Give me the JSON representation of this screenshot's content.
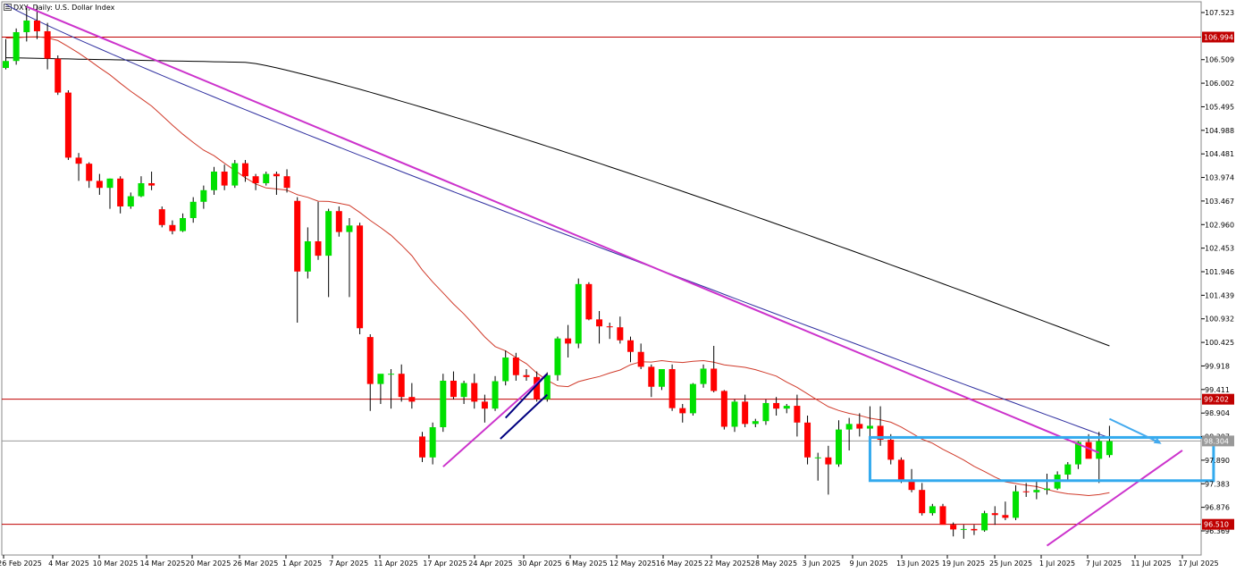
{
  "window": {
    "title": "DXY, Daily:  U.S. Dollar Index",
    "icon": "chart-window-icon"
  },
  "colors": {
    "background": "#ffffff",
    "bull_candle": "#00e000",
    "bear_candle": "#ff0000",
    "candle_wick": "#000000",
    "trendline": "#cc33cc",
    "channel_line": "#000080",
    "ma_fast": "#d03a2a",
    "ma_mid": "#3030a0",
    "ma_slow": "#000000",
    "horizontal_level": "#c00000",
    "current_price_line": "#999999",
    "consolidation_box": "#33aaee",
    "arrow": "#44aaee"
  },
  "chart_data": {
    "type": "candlestick",
    "symbol": "DXY",
    "timeframe": "Daily",
    "x_tick_labels": [
      "26 Feb 2025",
      "4 Mar 2025",
      "10 Mar 2025",
      "14 Mar 2025",
      "20 Mar 2025",
      "26 Mar 2025",
      "1 Apr 2025",
      "7 Apr 2025",
      "11 Apr 2025",
      "17 Apr 2025",
      "24 Apr 2025",
      "30 Apr 2025",
      "6 May 2025",
      "12 May 2025",
      "16 May 2025",
      "22 May 2025",
      "28 May 2025",
      "3 Jun 2025",
      "9 Jun 2025",
      "13 Jun 2025",
      "19 Jun 2025",
      "25 Jun 2025",
      "1 Jul 2025",
      "7 Jul 2025",
      "11 Jul 2025",
      "17 Jul 2025"
    ],
    "y_tick_labels": [
      "107.523",
      "106.509",
      "106.002",
      "105.495",
      "104.988",
      "104.481",
      "103.974",
      "103.467",
      "102.960",
      "102.453",
      "101.946",
      "101.439",
      "100.932",
      "100.425",
      "99.918",
      "99.411",
      "98.904",
      "98.397",
      "97.890",
      "97.383",
      "96.876",
      "96.369"
    ],
    "ylim": [
      96.1,
      107.75
    ],
    "horizontal_levels": [
      106.994,
      99.202,
      96.51
    ],
    "current_price": 98.304,
    "candles": [
      [
        106.33,
        106.95,
        106.3,
        106.48
      ],
      [
        106.48,
        107.18,
        106.4,
        107.1
      ],
      [
        107.1,
        107.62,
        106.9,
        107.35
      ],
      [
        107.35,
        107.68,
        106.95,
        107.12
      ],
      [
        107.12,
        107.3,
        106.3,
        106.53
      ],
      [
        106.53,
        106.6,
        105.75,
        105.8
      ],
      [
        105.8,
        105.85,
        104.35,
        104.4
      ],
      [
        104.4,
        104.5,
        103.9,
        104.27
      ],
      [
        104.27,
        104.3,
        103.75,
        103.9
      ],
      [
        103.9,
        104.05,
        103.6,
        103.75
      ],
      [
        103.75,
        103.95,
        103.3,
        103.95
      ],
      [
        103.95,
        104.0,
        103.2,
        103.35
      ],
      [
        103.35,
        103.65,
        103.3,
        103.57
      ],
      [
        103.57,
        104.0,
        103.55,
        103.85
      ],
      [
        103.85,
        104.1,
        103.7,
        103.8
      ],
      [
        103.29,
        103.35,
        102.9,
        102.95
      ],
      [
        102.95,
        103.05,
        102.75,
        102.82
      ],
      [
        102.82,
        103.2,
        102.8,
        103.1
      ],
      [
        103.1,
        103.55,
        103.0,
        103.45
      ],
      [
        103.45,
        103.8,
        103.3,
        103.7
      ],
      [
        103.7,
        104.2,
        103.6,
        104.1
      ],
      [
        104.1,
        104.25,
        103.7,
        103.8
      ],
      [
        103.8,
        104.35,
        103.75,
        104.28
      ],
      [
        104.28,
        104.35,
        103.88,
        104.0
      ],
      [
        104.0,
        104.05,
        103.7,
        103.85
      ],
      [
        103.85,
        104.1,
        103.8,
        104.05
      ],
      [
        104.05,
        104.1,
        103.6,
        104.0
      ],
      [
        104.0,
        104.15,
        103.65,
        103.75
      ],
      [
        103.47,
        103.55,
        100.85,
        101.95
      ],
      [
        101.95,
        102.9,
        101.8,
        102.6
      ],
      [
        102.6,
        103.45,
        102.2,
        102.29
      ],
      [
        102.29,
        103.3,
        101.4,
        103.25
      ],
      [
        103.25,
        103.35,
        102.7,
        102.8
      ],
      [
        102.8,
        103.1,
        101.4,
        102.94
      ],
      [
        102.94,
        103.0,
        100.6,
        100.73
      ],
      [
        100.54,
        100.6,
        98.95,
        99.53
      ],
      [
        99.53,
        99.65,
        99.1,
        99.75
      ],
      [
        99.75,
        99.85,
        99.0,
        99.75
      ],
      [
        99.75,
        99.95,
        99.15,
        99.25
      ],
      [
        99.25,
        99.55,
        99.0,
        99.15
      ],
      [
        98.4,
        98.5,
        97.85,
        97.95
      ],
      [
        97.95,
        98.7,
        97.8,
        98.6
      ],
      [
        98.6,
        99.75,
        98.5,
        99.6
      ],
      [
        99.6,
        99.8,
        99.2,
        99.25
      ],
      [
        99.25,
        99.6,
        99.1,
        99.55
      ],
      [
        99.55,
        99.75,
        99.0,
        99.15
      ],
      [
        99.15,
        99.3,
        98.7,
        99.0
      ],
      [
        99.0,
        99.7,
        98.95,
        99.59
      ],
      [
        99.59,
        100.25,
        99.5,
        100.1
      ],
      [
        100.1,
        100.2,
        99.6,
        99.72
      ],
      [
        99.72,
        99.85,
        99.6,
        99.68
      ],
      [
        99.68,
        99.8,
        99.15,
        99.2
      ],
      [
        99.2,
        99.78,
        99.15,
        99.72
      ],
      [
        99.72,
        100.55,
        99.6,
        100.51
      ],
      [
        100.51,
        100.8,
        100.1,
        100.4
      ],
      [
        100.4,
        101.8,
        100.3,
        101.68
      ],
      [
        101.68,
        101.72,
        100.9,
        100.92
      ],
      [
        100.92,
        101.1,
        100.4,
        100.77
      ],
      [
        100.77,
        100.85,
        100.5,
        100.75
      ],
      [
        100.75,
        100.98,
        100.4,
        100.47
      ],
      [
        100.47,
        100.55,
        100.0,
        100.22
      ],
      [
        100.22,
        100.4,
        99.85,
        99.9
      ],
      [
        99.9,
        99.95,
        99.25,
        99.47
      ],
      [
        99.47,
        99.85,
        99.4,
        99.85
      ],
      [
        99.85,
        99.95,
        98.95,
        99.01
      ],
      [
        99.01,
        99.1,
        98.7,
        98.9
      ],
      [
        98.9,
        99.55,
        98.85,
        99.53
      ],
      [
        99.53,
        99.95,
        99.45,
        99.86
      ],
      [
        99.86,
        100.35,
        99.35,
        99.38
      ],
      [
        99.38,
        99.4,
        98.55,
        98.61
      ],
      [
        98.61,
        99.2,
        98.5,
        99.15
      ],
      [
        99.15,
        99.3,
        98.6,
        98.67
      ],
      [
        98.67,
        98.78,
        98.6,
        98.73
      ],
      [
        98.73,
        99.2,
        98.65,
        99.12
      ],
      [
        99.12,
        99.25,
        98.85,
        99.0
      ],
      [
        99.0,
        99.1,
        98.9,
        99.06
      ],
      [
        99.06,
        99.3,
        98.4,
        98.7
      ],
      [
        98.7,
        98.85,
        97.8,
        97.95
      ],
      [
        97.95,
        98.05,
        97.45,
        97.95
      ],
      [
        97.95,
        98.2,
        97.15,
        97.8
      ],
      [
        97.8,
        98.75,
        97.75,
        98.55
      ],
      [
        98.55,
        98.8,
        98.1,
        98.67
      ],
      [
        98.67,
        98.9,
        98.4,
        98.57
      ],
      [
        98.57,
        99.05,
        98.3,
        98.63
      ],
      [
        98.63,
        99.05,
        98.2,
        98.33
      ],
      [
        98.33,
        98.45,
        97.8,
        97.9
      ],
      [
        97.9,
        97.95,
        97.4,
        97.45
      ],
      [
        97.45,
        97.7,
        97.2,
        97.25
      ],
      [
        97.25,
        97.4,
        96.7,
        96.75
      ],
      [
        96.75,
        96.95,
        96.7,
        96.9
      ],
      [
        96.9,
        96.95,
        96.6,
        96.5
      ],
      [
        96.5,
        96.55,
        96.25,
        96.4
      ],
      [
        96.4,
        96.5,
        96.2,
        96.41
      ],
      [
        96.41,
        96.5,
        96.28,
        96.38
      ],
      [
        96.38,
        96.8,
        96.35,
        96.75
      ],
      [
        96.75,
        96.9,
        96.5,
        96.71
      ],
      [
        96.71,
        97.0,
        96.6,
        96.65
      ],
      [
        96.65,
        97.35,
        96.6,
        97.22
      ],
      [
        97.22,
        97.4,
        97.1,
        97.2
      ],
      [
        97.2,
        97.45,
        97.05,
        97.25
      ],
      [
        97.25,
        97.6,
        97.15,
        97.28
      ],
      [
        97.28,
        97.65,
        97.25,
        97.58
      ],
      [
        97.58,
        97.85,
        97.45,
        97.8
      ],
      [
        97.8,
        98.3,
        97.7,
        98.28
      ],
      [
        98.28,
        98.45,
        97.95,
        97.92
      ],
      [
        97.92,
        98.5,
        97.4,
        98.3
      ],
      [
        98.0,
        98.63,
        97.95,
        98.3
      ]
    ],
    "x_axis_dates": "Feb 26, 2025 – Jul 17, 2025",
    "grid": false,
    "legend": "none"
  },
  "annotations": {
    "main_downtrend": "descending trendline from early March high",
    "consolidation_zone": [
      97.45,
      98.38
    ],
    "arrow": "pointing to upper edge of consolidation box"
  }
}
